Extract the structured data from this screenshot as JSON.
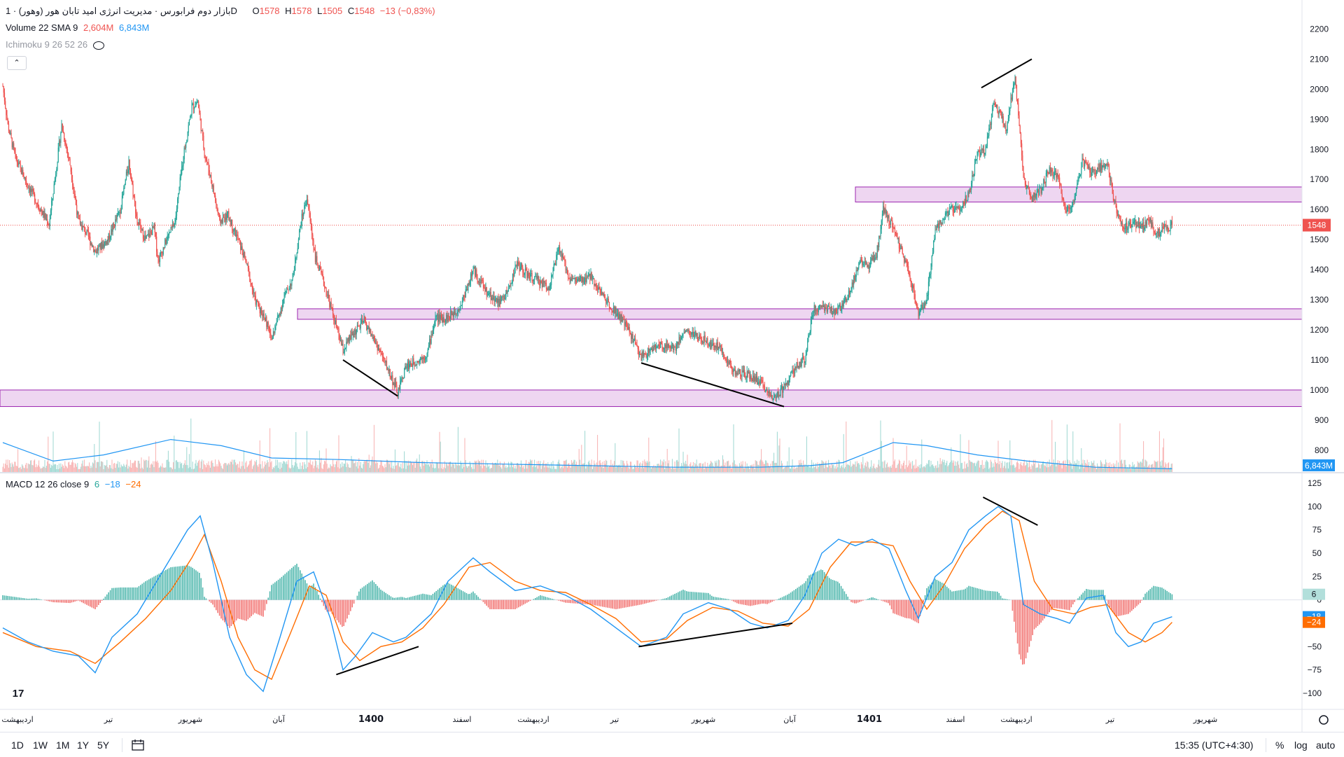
{
  "header": {
    "symbol_title": "بازار دوم فرابورس · مدیریت انرژی امید تابان هور (وهور) · 1D",
    "ohlc": {
      "open_label": "O",
      "open": "1578",
      "high_label": "H",
      "high": "1578",
      "low_label": "L",
      "low": "1505",
      "close_label": "C",
      "close": "1548",
      "change": "−13 (−0,83%)"
    },
    "volume_legend": {
      "label": "Volume 22 SMA 9",
      "value1": "2,604M",
      "value2": "6,843M"
    },
    "ichimoku_legend": {
      "label": "Ichimoku 9 26 52 26"
    },
    "collapse_icon": "chevron-up-icon"
  },
  "macd_legend": {
    "label": "MACD 12 26 close 9",
    "v_hist": "6",
    "v_macd": "−18",
    "v_signal": "−24"
  },
  "colors": {
    "up": "#26a69a",
    "down": "#ef5350",
    "zone_fill": "#e8c8ec",
    "zone_stroke": "#9c27b0",
    "macd": "#2196f3",
    "signal": "#ff6d00",
    "volume_sma": "#2196f3",
    "current_price": "#ef5350"
  },
  "price_axis": {
    "ticks": [
      "2200",
      "2100",
      "2000",
      "1900",
      "1800",
      "1700",
      "1600",
      "1500",
      "1400",
      "1300",
      "1200",
      "1100",
      "1000",
      "900",
      "800"
    ],
    "current": "1548",
    "volume_badge": "6,843M"
  },
  "macd_axis": {
    "ticks": [
      "125",
      "100",
      "75",
      "50",
      "25",
      "0",
      "−25",
      "−50",
      "−75",
      "−100"
    ],
    "badges": [
      "6",
      "−18",
      "−24"
    ]
  },
  "time_axis": {
    "labels": [
      "اردیبهشت",
      "تیر",
      "شهریور",
      "آبان",
      "1400",
      "اسفند",
      "اردیبهشت",
      "تیر",
      "شهریور",
      "آبان",
      "1401",
      "اسفند",
      "اردیبهشت",
      "تیر",
      "شهریور"
    ]
  },
  "bottom_bar": {
    "ranges": [
      "1D",
      "1W",
      "1M",
      "1Y",
      "5Y"
    ],
    "time": "15:35 (UTC+4:30)",
    "percent": "%",
    "log": "log",
    "auto": "auto",
    "logo": "17"
  },
  "chart_data": {
    "type": "candlestick",
    "interval": "1D",
    "price_ylim": [
      760,
      2250
    ],
    "macd_ylim": [
      -115,
      125
    ],
    "current_price": 1548,
    "last_bar": {
      "open": 1578,
      "high": 1578,
      "low": 1505,
      "close": 1548
    },
    "support_resistance_zones": [
      [
        1625,
        1675
      ],
      [
        1235,
        1270
      ],
      [
        945,
        1000
      ]
    ],
    "price_path": [
      [
        0,
        2010
      ],
      [
        6,
        1880
      ],
      [
        15,
        1770
      ],
      [
        30,
        1680
      ],
      [
        45,
        1600
      ],
      [
        55,
        1550
      ],
      [
        70,
        1880
      ],
      [
        80,
        1750
      ],
      [
        90,
        1560
      ],
      [
        100,
        1520
      ],
      [
        110,
        1460
      ],
      [
        125,
        1500
      ],
      [
        140,
        1600
      ],
      [
        150,
        1760
      ],
      [
        160,
        1560
      ],
      [
        170,
        1500
      ],
      [
        180,
        1540
      ],
      [
        185,
        1430
      ],
      [
        195,
        1500
      ],
      [
        205,
        1560
      ],
      [
        215,
        1780
      ],
      [
        225,
        1940
      ],
      [
        232,
        1960
      ],
      [
        240,
        1790
      ],
      [
        248,
        1700
      ],
      [
        258,
        1560
      ],
      [
        268,
        1580
      ],
      [
        280,
        1500
      ],
      [
        290,
        1420
      ],
      [
        300,
        1300
      ],
      [
        312,
        1240
      ],
      [
        320,
        1170
      ],
      [
        335,
        1310
      ],
      [
        345,
        1370
      ],
      [
        355,
        1560
      ],
      [
        362,
        1640
      ],
      [
        372,
        1440
      ],
      [
        385,
        1330
      ],
      [
        395,
        1230
      ],
      [
        405,
        1130
      ],
      [
        415,
        1180
      ],
      [
        430,
        1230
      ],
      [
        445,
        1150
      ],
      [
        460,
        1060
      ],
      [
        470,
        990
      ],
      [
        480,
        1080
      ],
      [
        495,
        1100
      ],
      [
        505,
        1120
      ],
      [
        515,
        1240
      ],
      [
        530,
        1240
      ],
      [
        545,
        1280
      ],
      [
        560,
        1400
      ],
      [
        575,
        1330
      ],
      [
        590,
        1290
      ],
      [
        600,
        1320
      ],
      [
        612,
        1420
      ],
      [
        625,
        1380
      ],
      [
        640,
        1360
      ],
      [
        650,
        1340
      ],
      [
        662,
        1470
      ],
      [
        675,
        1370
      ],
      [
        690,
        1360
      ],
      [
        700,
        1380
      ],
      [
        715,
        1310
      ],
      [
        730,
        1260
      ],
      [
        745,
        1200
      ],
      [
        760,
        1110
      ],
      [
        775,
        1140
      ],
      [
        790,
        1150
      ],
      [
        800,
        1140
      ],
      [
        812,
        1200
      ],
      [
        825,
        1180
      ],
      [
        840,
        1160
      ],
      [
        855,
        1140
      ],
      [
        870,
        1060
      ],
      [
        885,
        1050
      ],
      [
        900,
        1030
      ],
      [
        915,
        980
      ],
      [
        925,
        990
      ],
      [
        935,
        1030
      ],
      [
        945,
        1080
      ],
      [
        955,
        1100
      ],
      [
        965,
        1270
      ],
      [
        975,
        1270
      ],
      [
        990,
        1260
      ],
      [
        1000,
        1280
      ],
      [
        1010,
        1340
      ],
      [
        1020,
        1430
      ],
      [
        1030,
        1410
      ],
      [
        1040,
        1450
      ],
      [
        1048,
        1600
      ],
      [
        1060,
        1540
      ],
      [
        1070,
        1460
      ],
      [
        1080,
        1380
      ],
      [
        1090,
        1250
      ],
      [
        1100,
        1300
      ],
      [
        1110,
        1540
      ],
      [
        1120,
        1570
      ],
      [
        1130,
        1600
      ],
      [
        1140,
        1610
      ],
      [
        1150,
        1650
      ],
      [
        1160,
        1780
      ],
      [
        1170,
        1800
      ],
      [
        1180,
        1960
      ],
      [
        1190,
        1900
      ],
      [
        1195,
        1870
      ],
      [
        1205,
        2050
      ],
      [
        1215,
        1700
      ],
      [
        1225,
        1640
      ],
      [
        1235,
        1660
      ],
      [
        1245,
        1730
      ],
      [
        1255,
        1720
      ],
      [
        1265,
        1600
      ],
      [
        1275,
        1620
      ],
      [
        1285,
        1760
      ],
      [
        1295,
        1720
      ],
      [
        1305,
        1740
      ],
      [
        1315,
        1750
      ],
      [
        1325,
        1600
      ],
      [
        1335,
        1540
      ],
      [
        1345,
        1560
      ],
      [
        1355,
        1540
      ],
      [
        1365,
        1560
      ],
      [
        1375,
        1520
      ],
      [
        1385,
        1540
      ],
      [
        1392,
        1548
      ]
    ],
    "macd_path": [
      [
        0,
        -30
      ],
      [
        30,
        -45
      ],
      [
        60,
        -55
      ],
      [
        90,
        -60
      ],
      [
        110,
        -78
      ],
      [
        130,
        -40
      ],
      [
        160,
        -15
      ],
      [
        190,
        30
      ],
      [
        220,
        75
      ],
      [
        235,
        90
      ],
      [
        250,
        40
      ],
      [
        270,
        -40
      ],
      [
        290,
        -80
      ],
      [
        310,
        -98
      ],
      [
        330,
        -40
      ],
      [
        350,
        20
      ],
      [
        370,
        30
      ],
      [
        390,
        -20
      ],
      [
        405,
        -75
      ],
      [
        420,
        -60
      ],
      [
        440,
        -35
      ],
      [
        465,
        -45
      ],
      [
        480,
        -40
      ],
      [
        510,
        -15
      ],
      [
        530,
        20
      ],
      [
        560,
        45
      ],
      [
        580,
        30
      ],
      [
        610,
        10
      ],
      [
        640,
        15
      ],
      [
        670,
        5
      ],
      [
        700,
        -10
      ],
      [
        730,
        -30
      ],
      [
        760,
        -50
      ],
      [
        790,
        -40
      ],
      [
        810,
        -15
      ],
      [
        840,
        -3
      ],
      [
        865,
        -10
      ],
      [
        890,
        -25
      ],
      [
        910,
        -30
      ],
      [
        935,
        -22
      ],
      [
        955,
        5
      ],
      [
        975,
        50
      ],
      [
        995,
        65
      ],
      [
        1015,
        58
      ],
      [
        1035,
        65
      ],
      [
        1055,
        55
      ],
      [
        1075,
        10
      ],
      [
        1090,
        -20
      ],
      [
        1110,
        25
      ],
      [
        1130,
        40
      ],
      [
        1150,
        75
      ],
      [
        1170,
        90
      ],
      [
        1185,
        100
      ],
      [
        1200,
        90
      ],
      [
        1215,
        -5
      ],
      [
        1235,
        -15
      ],
      [
        1255,
        -20
      ],
      [
        1270,
        -25
      ],
      [
        1290,
        2
      ],
      [
        1310,
        5
      ],
      [
        1325,
        -35
      ],
      [
        1340,
        -50
      ],
      [
        1355,
        -45
      ],
      [
        1370,
        -25
      ],
      [
        1392,
        -18
      ]
    ],
    "signal_path": [
      [
        0,
        -35
      ],
      [
        40,
        -50
      ],
      [
        80,
        -55
      ],
      [
        110,
        -68
      ],
      [
        140,
        -45
      ],
      [
        170,
        -20
      ],
      [
        200,
        10
      ],
      [
        225,
        45
      ],
      [
        240,
        70
      ],
      [
        260,
        20
      ],
      [
        280,
        -40
      ],
      [
        300,
        -75
      ],
      [
        320,
        -85
      ],
      [
        345,
        -30
      ],
      [
        365,
        15
      ],
      [
        385,
        5
      ],
      [
        405,
        -45
      ],
      [
        425,
        -65
      ],
      [
        450,
        -50
      ],
      [
        475,
        -45
      ],
      [
        500,
        -30
      ],
      [
        525,
        -5
      ],
      [
        555,
        35
      ],
      [
        580,
        40
      ],
      [
        610,
        20
      ],
      [
        640,
        10
      ],
      [
        670,
        8
      ],
      [
        700,
        -5
      ],
      [
        730,
        -20
      ],
      [
        760,
        -45
      ],
      [
        790,
        -42
      ],
      [
        815,
        -22
      ],
      [
        845,
        -8
      ],
      [
        875,
        -12
      ],
      [
        905,
        -25
      ],
      [
        935,
        -28
      ],
      [
        960,
        -10
      ],
      [
        985,
        35
      ],
      [
        1010,
        62
      ],
      [
        1035,
        62
      ],
      [
        1060,
        58
      ],
      [
        1080,
        20
      ],
      [
        1100,
        -10
      ],
      [
        1120,
        15
      ],
      [
        1145,
        55
      ],
      [
        1170,
        80
      ],
      [
        1190,
        95
      ],
      [
        1210,
        85
      ],
      [
        1228,
        20
      ],
      [
        1250,
        -10
      ],
      [
        1275,
        -15
      ],
      [
        1295,
        -8
      ],
      [
        1315,
        -5
      ],
      [
        1340,
        -35
      ],
      [
        1360,
        -45
      ],
      [
        1380,
        -35
      ],
      [
        1392,
        -24
      ]
    ],
    "volume_sma_path": [
      [
        0,
        20
      ],
      [
        60,
        8
      ],
      [
        120,
        12
      ],
      [
        200,
        22
      ],
      [
        260,
        18
      ],
      [
        320,
        10
      ],
      [
        400,
        9
      ],
      [
        500,
        7
      ],
      [
        600,
        6
      ],
      [
        700,
        5
      ],
      [
        800,
        4
      ],
      [
        900,
        4
      ],
      [
        960,
        5
      ],
      [
        1000,
        7
      ],
      [
        1060,
        20
      ],
      [
        1100,
        18
      ],
      [
        1160,
        12
      ],
      [
        1220,
        8
      ],
      [
        1300,
        4
      ],
      [
        1392,
        3
      ]
    ],
    "trendlines_price": [
      [
        [
          405,
          1100
        ],
        [
          470,
          980
        ]
      ],
      [
        [
          760,
          1090
        ],
        [
          930,
          945
        ]
      ],
      [
        [
          1165,
          2005
        ],
        [
          1225,
          2100
        ]
      ]
    ],
    "trendlines_macd": [
      [
        [
          397,
          -80
        ],
        [
          495,
          -50
        ]
      ],
      [
        [
          757,
          -50
        ],
        [
          940,
          -25
        ]
      ],
      [
        [
          1167,
          110
        ],
        [
          1232,
          80
        ]
      ]
    ]
  }
}
